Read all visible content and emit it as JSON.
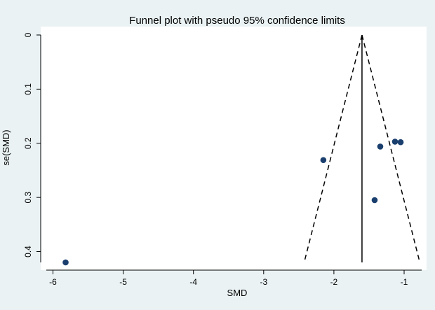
{
  "chart_data": {
    "type": "scatter",
    "title": "Funnel plot with pseudo 95% confidence limits",
    "xlabel": "SMD",
    "ylabel": "se(SMD)",
    "xlim": [
      -6.05,
      -0.75
    ],
    "ylim": [
      0,
      0.42
    ],
    "y_reversed": true,
    "x_ticks": [
      -6,
      -5,
      -4,
      -3,
      -2,
      -1
    ],
    "y_ticks": [
      0,
      0.1,
      0.2,
      0.3,
      0.4
    ],
    "x_tick_labels": [
      "-6",
      "-5",
      "-4",
      "-3",
      "-2",
      "-1"
    ],
    "y_tick_labels": [
      "0",
      "0.1",
      "0.2",
      "0.3",
      "0.4"
    ],
    "grid": false,
    "colors": {
      "background": "#eaf2f3",
      "plot_area": "#ffffff",
      "marker": "#1a3f6e",
      "line": "#000000"
    },
    "pooled_effect": -1.6,
    "pseudo_ci_multiplier": 1.96,
    "points": [
      {
        "x": -5.82,
        "y": 0.42
      },
      {
        "x": -2.15,
        "y": 0.231
      },
      {
        "x": -1.42,
        "y": 0.305
      },
      {
        "x": -1.34,
        "y": 0.206
      },
      {
        "x": -1.13,
        "y": 0.197
      },
      {
        "x": -1.05,
        "y": 0.198
      }
    ]
  }
}
